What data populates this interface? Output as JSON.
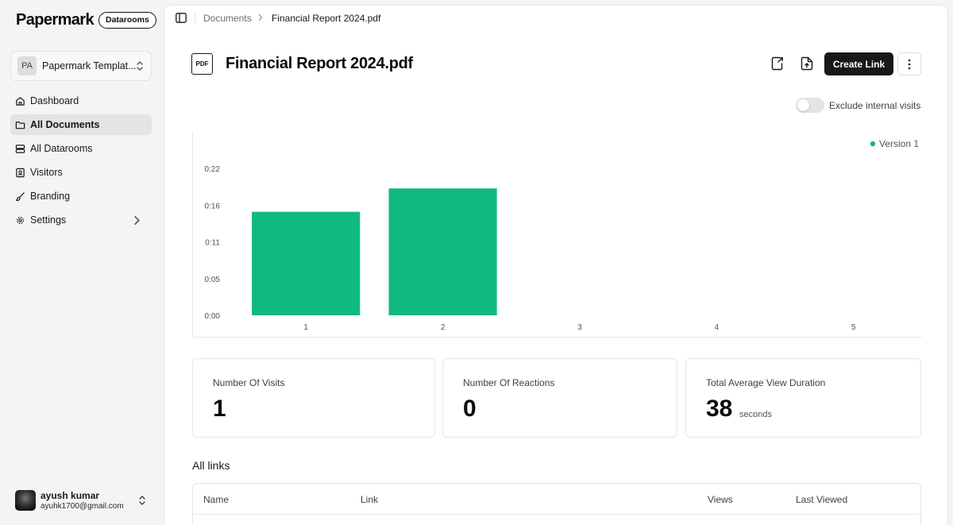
{
  "sidebar": {
    "brand": "Papermark",
    "badge": "Datarooms",
    "team": {
      "initials": "PA",
      "name": "Papermark Templat..."
    },
    "items": [
      {
        "label": "Dashboard",
        "icon": "home-icon"
      },
      {
        "label": "All Documents",
        "icon": "folder-icon",
        "active": true
      },
      {
        "label": "All Datarooms",
        "icon": "server-icon"
      },
      {
        "label": "Visitors",
        "icon": "contact-icon"
      },
      {
        "label": "Branding",
        "icon": "brush-icon"
      },
      {
        "label": "Settings",
        "icon": "gear-icon"
      }
    ],
    "user": {
      "name": "ayush kumar",
      "email": "ayuhk1700@gmail.com"
    }
  },
  "breadcrumb": {
    "root": "Documents",
    "current": "Financial Report 2024.pdf"
  },
  "document": {
    "file_type": "PDF",
    "title": "Financial Report 2024.pdf"
  },
  "actions": {
    "create_link": "Create Link"
  },
  "toggle": {
    "label": "Exclude internal visits",
    "on": false
  },
  "chart_data": {
    "type": "bar",
    "categories": [
      "1",
      "2",
      "3",
      "4",
      "5"
    ],
    "values": [
      15.5,
      19,
      0,
      0,
      0
    ],
    "y_ticks": [
      "0:00",
      "0:05",
      "0:11",
      "0:16",
      "0:22"
    ],
    "y_tick_values": [
      0,
      5.5,
      11,
      16.5,
      22
    ],
    "ylim": [
      0,
      22
    ],
    "series_name": "Version 1",
    "color": "#10b981",
    "legend": "top-right"
  },
  "stats": [
    {
      "label": "Number Of Visits",
      "value": "1",
      "unit": ""
    },
    {
      "label": "Number Of Reactions",
      "value": "0",
      "unit": ""
    },
    {
      "label": "Total Average View Duration",
      "value": "38",
      "unit": "seconds"
    }
  ],
  "links": {
    "title": "All links",
    "columns": [
      "Name",
      "Link",
      "Views",
      "Last Viewed"
    ]
  }
}
